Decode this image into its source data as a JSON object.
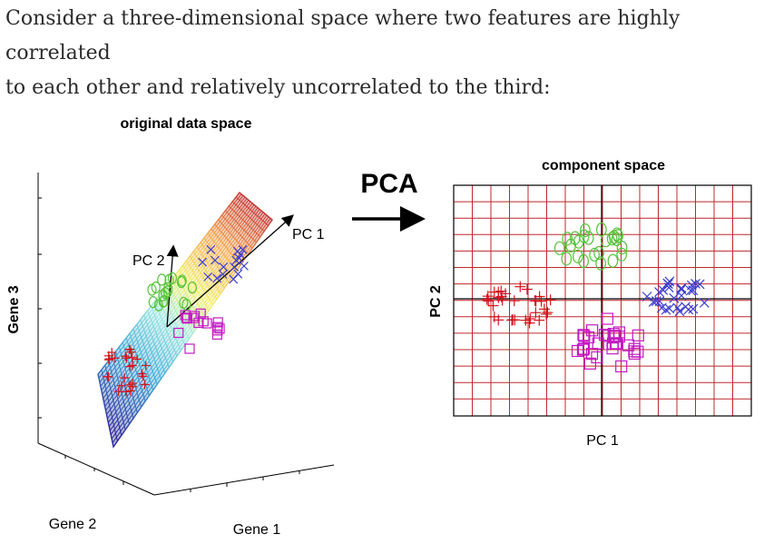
{
  "intro": {
    "line1": "Consider a three-dimensional space where two features are highly correlated",
    "line2": "to each other and relatively uncorrelated to the third:"
  },
  "left_panel": {
    "title": "original data space",
    "axis_z": "Gene 3",
    "axis_y": "Gene 2",
    "axis_x": "Gene 1",
    "pc1": "PC 1",
    "pc2": "PC 2"
  },
  "arrow_label": "PCA",
  "right_panel": {
    "title": "component space",
    "xlabel": "PC 1",
    "ylabel": "PC 2"
  },
  "colors": {
    "grid": "#c0272d",
    "red": "#d4141c",
    "green": "#55c33a",
    "magenta": "#c31bc3",
    "blue": "#3c3ccf",
    "text": "#2b2b2b"
  }
}
